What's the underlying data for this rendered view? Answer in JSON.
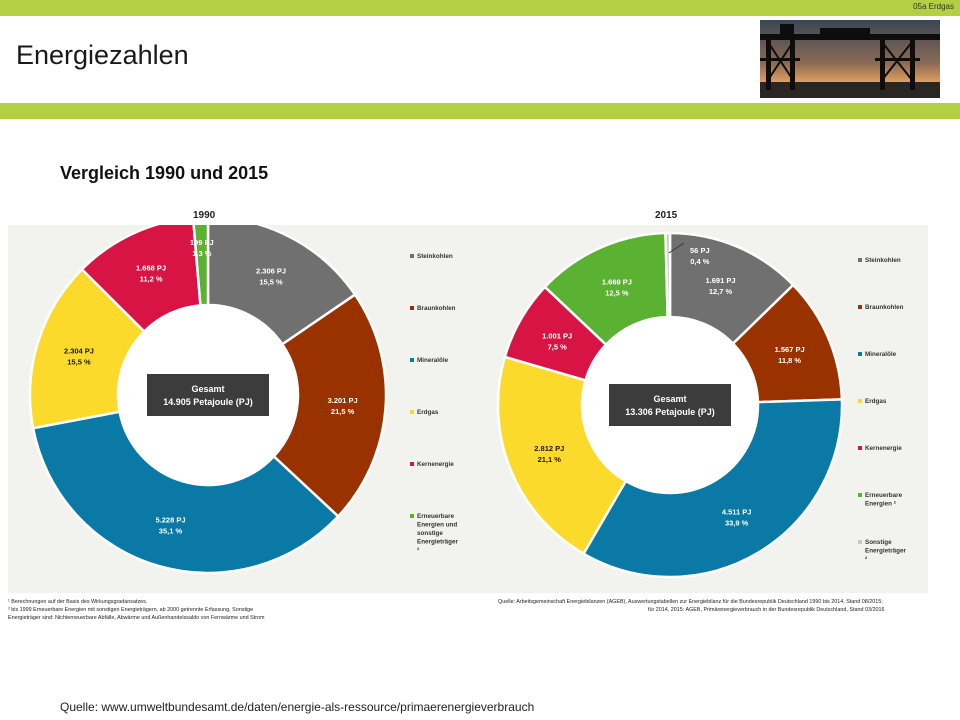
{
  "header": {
    "corner_label": "05a Erdgas",
    "title": "Energiezahlen",
    "accent_color": "#b5cf45"
  },
  "subtitle": "Vergleich 1990 und 2015",
  "chart_data": [
    {
      "type": "pie",
      "variant": "donut",
      "title": "1990",
      "center_label": [
        "Gesamt",
        "14.905 Petajoule (PJ)"
      ],
      "slices": [
        {
          "name": "Steinkohlen",
          "value": 2306,
          "value_label": "2.306 PJ",
          "percent_label": "15,5 %",
          "color": "#707070"
        },
        {
          "name": "Braunkohlen",
          "value": 3201,
          "value_label": "3.201 PJ",
          "percent_label": "21,5 %",
          "color": "#9a3200"
        },
        {
          "name": "Mineralöle",
          "value": 5228,
          "value_label": "5.228 PJ",
          "percent_label": "35,1 %",
          "color": "#0a79a6"
        },
        {
          "name": "Erdgas",
          "value": 2304,
          "value_label": "2.304 PJ",
          "percent_label": "15,5 %",
          "color": "#fbda2c"
        },
        {
          "name": "Kernenergie",
          "value": 1668,
          "value_label": "1.668 PJ",
          "percent_label": "11,2 %",
          "color": "#d81445"
        },
        {
          "name": "Erneuerbare Energien und sonstige Energieträger ²",
          "value": 199,
          "value_label": "199 PJ",
          "percent_label": "1,3 %",
          "color": "#5bb232"
        }
      ],
      "legend": [
        "Steinkohlen",
        "Braunkohlen",
        "Mineralöle",
        "Erdgas",
        "Kernenergie",
        "Erneuerbare Energien und sonstige Energieträger ²"
      ],
      "legend_position": "right"
    },
    {
      "type": "pie",
      "variant": "donut",
      "title": "2015",
      "center_label": [
        "Gesamt",
        "13.306 Petajoule (PJ)"
      ],
      "slices": [
        {
          "name": "Steinkohlen",
          "value": 1691,
          "value_label": "1.691 PJ",
          "percent_label": "12,7 %",
          "color": "#707070"
        },
        {
          "name": "Braunkohlen",
          "value": 1567,
          "value_label": "1.567 PJ",
          "percent_label": "11,8 %",
          "color": "#9a3200"
        },
        {
          "name": "Mineralöle",
          "value": 4511,
          "value_label": "4.511 PJ",
          "percent_label": "33,9 %",
          "color": "#0a79a6"
        },
        {
          "name": "Erdgas",
          "value": 2812,
          "value_label": "2.812 PJ",
          "percent_label": "21,1 %",
          "color": "#fbda2c"
        },
        {
          "name": "Kernenergie",
          "value": 1001,
          "value_label": "1.001 PJ",
          "percent_label": "7,5 %",
          "color": "#d81445"
        },
        {
          "name": "Erneuerbare Energien ²",
          "value": 1669,
          "value_label": "1.669 PJ",
          "percent_label": "12,5 %",
          "color": "#5bb232"
        },
        {
          "name": "Sonstige Energieträger ²",
          "value": 56,
          "value_label": "56 PJ",
          "percent_label": "0,4 %",
          "color": "#c8c8c8"
        }
      ],
      "legend": [
        "Steinkohlen",
        "Braunkohlen",
        "Mineralöle",
        "Erdgas",
        "Kernenergie",
        "Erneuerbare Energien ²",
        "Sonstige Energieträger ²"
      ],
      "legend_position": "right"
    }
  ],
  "footnotes": {
    "left": [
      "¹ Berechnungen auf der Basis des Wirkungsgradansatzes.",
      "² bis 1999 Erneuerbare Energien mit sonstigen Energieträgern, ab 2000 getrennte Erfassung, Sonstige",
      "Energieträger sind: Nichterneuerbare Abfälle, Abwärme und Außenhandelssaldo von Fernwärme und Strom"
    ],
    "right": [
      "Quelle: Arbeitsgemeinschaft Energiebilanzen (AGEB), Auswertungstabellen zur Energiebilanz für die Bundesrepublik Deutschland 1990 bis 2014, Stand 08/2015;",
      "für 2014, 2015: AGEB, Primärenergieverbrauch in der Bundesrepublik Deutschland, Stand 03/2016"
    ]
  },
  "source": "Quelle: www.umweltbundesamt.de/daten/energie-als-ressource/primaerenergieverbrauch"
}
